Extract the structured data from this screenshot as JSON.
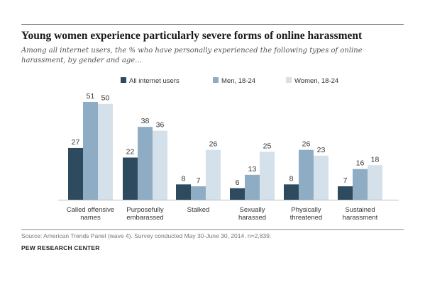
{
  "header": {
    "title": "Young women experience particularly severe forms of online harassment",
    "subtitle": "Among all internet users, the % who have personally experienced the following types of online harassment, by gender and age..."
  },
  "footer": {
    "source": "Source: American Trends Panel (wave 4). Survey conducted May 30-June 30, 2014. n=2,839.",
    "credit": "PEW RESEARCH CENTER"
  },
  "chart_data": {
    "type": "bar",
    "categories": [
      [
        "Called offensive",
        "names"
      ],
      [
        "Purposefully",
        "embarassed"
      ],
      [
        "Stalked"
      ],
      [
        "Sexually",
        "harassed"
      ],
      [
        "Physically",
        "threatened"
      ],
      [
        "Sustained",
        "harassment"
      ]
    ],
    "series": [
      {
        "name": "All internet users",
        "values": [
          27,
          22,
          8,
          6,
          8,
          7
        ],
        "color": "#2e4a5f"
      },
      {
        "name": "Men, 18-24",
        "values": [
          51,
          38,
          7,
          13,
          26,
          16
        ],
        "color": "#8eadc4"
      },
      {
        "name": "Women, 18-24",
        "values": [
          50,
          36,
          26,
          25,
          23,
          18
        ],
        "color": "#d4e0ea"
      }
    ],
    "ylim": [
      0,
      51
    ],
    "grid": false,
    "legend": "top"
  }
}
